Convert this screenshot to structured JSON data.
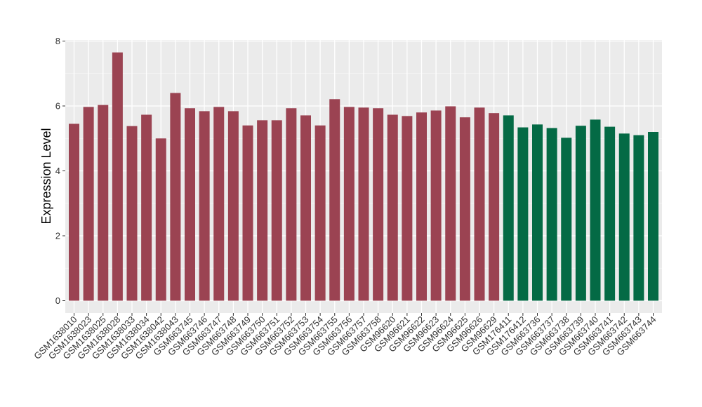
{
  "chart_data": {
    "type": "bar",
    "title": "",
    "xlabel": "",
    "ylabel": "Expression Level",
    "ylim": [
      0,
      8
    ],
    "yticks": [
      0,
      2,
      4,
      6,
      8
    ],
    "grid": true,
    "legend": "none",
    "colors": {
      "group1": "#9b4352",
      "group2": "#046a45",
      "panel_bg": "#ebebeb",
      "grid": "#ffffff"
    },
    "categories": [
      "GSM1638010",
      "GSM1638023",
      "GSM1638025",
      "GSM1638028",
      "GSM1638033",
      "GSM1638034",
      "GSM1638042",
      "GSM1638043",
      "GSM663745",
      "GSM663746",
      "GSM663747",
      "GSM663748",
      "GSM663749",
      "GSM663750",
      "GSM663751",
      "GSM663752",
      "GSM663753",
      "GSM663754",
      "GSM663755",
      "GSM663756",
      "GSM663757",
      "GSM663758",
      "GSM96620",
      "GSM96621",
      "GSM96622",
      "GSM96623",
      "GSM96624",
      "GSM96625",
      "GSM96626",
      "GSM96629",
      "GSM176411",
      "GSM176412",
      "GSM663736",
      "GSM663737",
      "GSM663738",
      "GSM663739",
      "GSM663740",
      "GSM663741",
      "GSM663742",
      "GSM663743",
      "GSM663744"
    ],
    "values": [
      5.45,
      5.97,
      6.03,
      7.65,
      5.38,
      5.73,
      5.0,
      6.4,
      5.93,
      5.84,
      5.97,
      5.84,
      5.4,
      5.56,
      5.56,
      5.93,
      5.71,
      5.4,
      6.21,
      5.97,
      5.95,
      5.93,
      5.73,
      5.69,
      5.8,
      5.86,
      5.99,
      5.65,
      5.95,
      5.78,
      5.71,
      5.34,
      5.43,
      5.32,
      5.02,
      5.39,
      5.58,
      5.36,
      5.15,
      5.1,
      5.2
    ],
    "group": [
      1,
      1,
      1,
      1,
      1,
      1,
      1,
      1,
      1,
      1,
      1,
      1,
      1,
      1,
      1,
      1,
      1,
      1,
      1,
      1,
      1,
      1,
      1,
      1,
      1,
      1,
      1,
      1,
      1,
      1,
      2,
      2,
      2,
      2,
      2,
      2,
      2,
      2,
      2,
      2,
      2
    ]
  }
}
